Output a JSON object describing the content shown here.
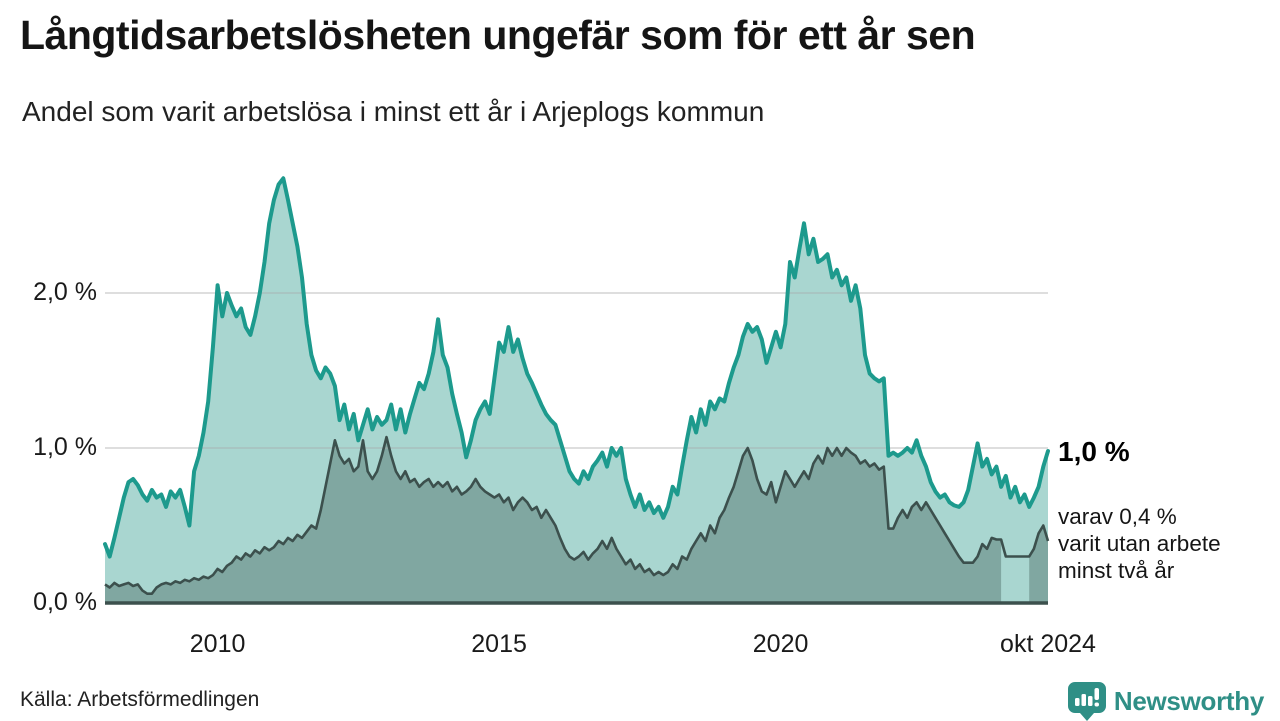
{
  "header": {
    "title": "Långtidsarbetslösheten ungefär som för ett år sen",
    "subtitle": "Andel som varit arbetslösa i minst ett år i Arjeplogs kommun"
  },
  "annotations": {
    "latest_value": "1,0 %",
    "secondary_lines": [
      "varav 0,4 %",
      "varit utan arbete",
      "minst två år"
    ]
  },
  "footer": {
    "source": "Källa: Arbetsförmedlingen",
    "brand": "Newsworthy"
  },
  "colors": {
    "outer_line": "#1d9a8d",
    "outer_fill": "#a9d6d0",
    "inner_line": "#3c504d",
    "inner_fill": "#80a7a1",
    "axis_line": "#3c504d",
    "gridline": "rgba(170,170,170,0.5)",
    "brand_teal": "#2f8f86",
    "text": "#1a1a1a"
  },
  "chart_data": {
    "type": "area",
    "title": "Långtidsarbetslösheten ungefär som för ett år sen",
    "subtitle": "Andel som varit arbetslösa i minst ett år i Arjeplogs kommun",
    "unit": "%",
    "frequency": "monthly",
    "x_start": "2008-01",
    "x_end": "2024-10",
    "ylim": [
      0,
      2.85
    ],
    "grid": "horizontal",
    "y_ticks": [
      {
        "label": "0,0 %",
        "value": 0
      },
      {
        "label": "1,0 %",
        "value": 1
      },
      {
        "label": "2,0 %",
        "value": 2
      }
    ],
    "x_ticks": [
      {
        "label": "2010",
        "index": 24
      },
      {
        "label": "2015",
        "index": 84
      },
      {
        "label": "2020",
        "index": 144
      },
      {
        "label": "okt 2024",
        "index": 201
      }
    ],
    "series": [
      {
        "name": "Andel arbetslösa minst ett år",
        "latest_label": "1,0 %",
        "values": [
          0.38,
          0.3,
          0.42,
          0.55,
          0.68,
          0.78,
          0.8,
          0.76,
          0.7,
          0.66,
          0.73,
          0.68,
          0.7,
          0.62,
          0.72,
          0.68,
          0.73,
          0.62,
          0.5,
          0.85,
          0.95,
          1.1,
          1.3,
          1.65,
          2.05,
          1.85,
          2.0,
          1.92,
          1.85,
          1.9,
          1.78,
          1.73,
          1.85,
          2.0,
          2.2,
          2.45,
          2.6,
          2.7,
          2.74,
          2.6,
          2.45,
          2.3,
          2.1,
          1.8,
          1.6,
          1.5,
          1.45,
          1.52,
          1.48,
          1.4,
          1.18,
          1.28,
          1.12,
          1.22,
          1.05,
          1.15,
          1.25,
          1.12,
          1.2,
          1.15,
          1.18,
          1.28,
          1.12,
          1.25,
          1.1,
          1.22,
          1.32,
          1.42,
          1.38,
          1.48,
          1.62,
          1.83,
          1.6,
          1.52,
          1.35,
          1.22,
          1.1,
          0.94,
          1.05,
          1.18,
          1.25,
          1.3,
          1.22,
          1.45,
          1.68,
          1.62,
          1.78,
          1.62,
          1.7,
          1.58,
          1.48,
          1.42,
          1.35,
          1.28,
          1.22,
          1.18,
          1.15,
          1.05,
          0.95,
          0.85,
          0.8,
          0.77,
          0.85,
          0.8,
          0.88,
          0.92,
          0.97,
          0.88,
          1.0,
          0.95,
          1.0,
          0.8,
          0.7,
          0.62,
          0.7,
          0.6,
          0.65,
          0.58,
          0.62,
          0.55,
          0.62,
          0.75,
          0.7,
          0.88,
          1.05,
          1.2,
          1.1,
          1.25,
          1.15,
          1.3,
          1.25,
          1.32,
          1.3,
          1.42,
          1.52,
          1.6,
          1.72,
          1.8,
          1.75,
          1.78,
          1.7,
          1.55,
          1.65,
          1.75,
          1.65,
          1.8,
          2.2,
          2.1,
          2.28,
          2.45,
          2.25,
          2.35,
          2.2,
          2.22,
          2.25,
          2.1,
          2.15,
          2.05,
          2.1,
          1.95,
          2.05,
          1.9,
          1.6,
          1.48,
          1.45,
          1.43,
          1.45,
          0.95,
          0.97,
          0.95,
          0.97,
          1.0,
          0.97,
          1.05,
          0.95,
          0.88,
          0.78,
          0.72,
          0.68,
          0.7,
          0.65,
          0.63,
          0.62,
          0.65,
          0.73,
          0.88,
          1.03,
          0.88,
          0.93,
          0.83,
          0.88,
          0.75,
          0.82,
          0.68,
          0.75,
          0.65,
          0.7,
          0.62,
          0.68,
          0.75,
          0.88,
          0.98
        ]
      },
      {
        "name": "varav utan arbete minst två år",
        "latest_label": "0,4 %",
        "fill_gap_index_range": [
          191,
          197
        ],
        "values": [
          0.12,
          0.1,
          0.13,
          0.11,
          0.12,
          0.13,
          0.11,
          0.12,
          0.08,
          0.06,
          0.06,
          0.1,
          0.12,
          0.13,
          0.12,
          0.14,
          0.13,
          0.15,
          0.14,
          0.16,
          0.15,
          0.17,
          0.16,
          0.18,
          0.22,
          0.2,
          0.24,
          0.26,
          0.3,
          0.28,
          0.32,
          0.3,
          0.34,
          0.32,
          0.36,
          0.34,
          0.36,
          0.4,
          0.38,
          0.42,
          0.4,
          0.44,
          0.42,
          0.46,
          0.5,
          0.48,
          0.6,
          0.75,
          0.9,
          1.05,
          0.95,
          0.9,
          0.93,
          0.85,
          0.88,
          1.05,
          0.85,
          0.8,
          0.85,
          0.95,
          1.07,
          0.95,
          0.85,
          0.8,
          0.85,
          0.78,
          0.8,
          0.75,
          0.78,
          0.8,
          0.75,
          0.78,
          0.75,
          0.78,
          0.72,
          0.75,
          0.7,
          0.72,
          0.75,
          0.8,
          0.75,
          0.72,
          0.7,
          0.68,
          0.7,
          0.65,
          0.68,
          0.6,
          0.65,
          0.68,
          0.65,
          0.6,
          0.62,
          0.55,
          0.6,
          0.55,
          0.5,
          0.42,
          0.35,
          0.3,
          0.28,
          0.3,
          0.33,
          0.28,
          0.32,
          0.35,
          0.4,
          0.35,
          0.42,
          0.35,
          0.3,
          0.25,
          0.28,
          0.22,
          0.25,
          0.2,
          0.22,
          0.18,
          0.2,
          0.18,
          0.2,
          0.25,
          0.22,
          0.3,
          0.28,
          0.35,
          0.4,
          0.45,
          0.4,
          0.5,
          0.45,
          0.55,
          0.6,
          0.68,
          0.75,
          0.85,
          0.95,
          1.0,
          0.92,
          0.8,
          0.72,
          0.7,
          0.78,
          0.65,
          0.75,
          0.85,
          0.8,
          0.75,
          0.8,
          0.85,
          0.8,
          0.9,
          0.95,
          0.9,
          1.0,
          0.95,
          1.0,
          0.95,
          1.0,
          0.97,
          0.95,
          0.9,
          0.92,
          0.88,
          0.9,
          0.86,
          0.88,
          0.48,
          0.48,
          0.55,
          0.6,
          0.55,
          0.62,
          0.65,
          0.6,
          0.65,
          0.6,
          0.55,
          0.5,
          0.45,
          0.4,
          0.35,
          0.3,
          0.26,
          0.26,
          0.26,
          0.3,
          0.38,
          0.35,
          0.42,
          0.41,
          0.41,
          0.3,
          0.3,
          0.3,
          0.3,
          0.3,
          0.3,
          0.35,
          0.45,
          0.5,
          0.4
        ]
      }
    ]
  }
}
